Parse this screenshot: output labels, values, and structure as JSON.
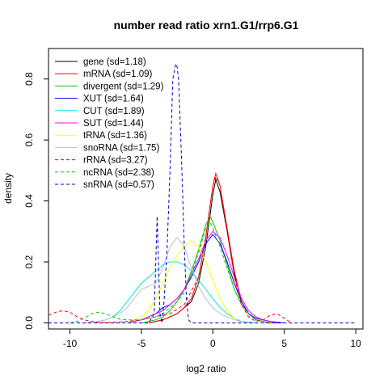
{
  "chart_data": {
    "type": "line",
    "title": "number read ratio xrn1.G1/rrp6.G1",
    "xlabel": "log2 ratio",
    "ylabel": "density",
    "xlim": [
      -11.5,
      10.5
    ],
    "ylim": [
      -0.02,
      0.9
    ],
    "xticks": [
      -10,
      -5,
      0,
      5,
      10
    ],
    "yticks": [
      0.0,
      0.2,
      0.4,
      0.6,
      0.8
    ],
    "xtick_labels": [
      "-10",
      "-5",
      "0",
      "5",
      "10"
    ],
    "ytick_labels": [
      "0.0",
      "0.2",
      "0.4",
      "0.6",
      "0.8"
    ],
    "grid": false,
    "legend_position": "top-left",
    "series": [
      {
        "name": "gene (sd=1.18)",
        "color": "#000000",
        "dash": "solid",
        "x": [
          -4.5,
          -4,
          -3.5,
          -3,
          -2.5,
          -2,
          -1.5,
          -1,
          -0.5,
          0,
          0.2,
          0.5,
          1,
          1.5,
          2,
          2.5,
          3,
          3.5,
          4,
          4.5
        ],
        "y": [
          0,
          0.005,
          0.01,
          0.02,
          0.03,
          0.05,
          0.07,
          0.13,
          0.25,
          0.42,
          0.47,
          0.43,
          0.3,
          0.16,
          0.07,
          0.03,
          0.01,
          0.005,
          0,
          0
        ]
      },
      {
        "name": "mRNA (sd=1.09)",
        "color": "#ff0000",
        "dash": "solid",
        "x": [
          -4.5,
          -4,
          -3.5,
          -3,
          -2.5,
          -2,
          -1.5,
          -1,
          -0.5,
          0,
          0.2,
          0.5,
          1,
          1.5,
          2,
          2.5,
          3,
          3.5,
          4,
          4.5
        ],
        "y": [
          0,
          0.005,
          0.01,
          0.02,
          0.03,
          0.05,
          0.08,
          0.15,
          0.28,
          0.45,
          0.49,
          0.45,
          0.31,
          0.17,
          0.07,
          0.03,
          0.01,
          0.005,
          0,
          0
        ]
      },
      {
        "name": "divergent (sd=1.29)",
        "color": "#00cc00",
        "dash": "solid",
        "x": [
          -5,
          -4.5,
          -4,
          -3.5,
          -3,
          -2.5,
          -2,
          -1.5,
          -1,
          -0.5,
          -0.2,
          0,
          0.5,
          1,
          1.5,
          2,
          2.5,
          3,
          3.5,
          4
        ],
        "y": [
          0,
          0.005,
          0.01,
          0.02,
          0.04,
          0.07,
          0.11,
          0.17,
          0.24,
          0.32,
          0.35,
          0.33,
          0.27,
          0.19,
          0.11,
          0.06,
          0.03,
          0.01,
          0.005,
          0
        ]
      },
      {
        "name": "XUT (sd=1.64)",
        "color": "#0000ff",
        "dash": "solid",
        "x": [
          -6,
          -5.5,
          -5,
          -4.5,
          -4,
          -3.5,
          -3,
          -2.5,
          -2,
          -1.5,
          -1,
          -0.5,
          0,
          0.5,
          1,
          1.5,
          2,
          2.5,
          3,
          4,
          5
        ],
        "y": [
          0,
          0.005,
          0.01,
          0.02,
          0.03,
          0.05,
          0.06,
          0.08,
          0.11,
          0.15,
          0.2,
          0.26,
          0.29,
          0.26,
          0.2,
          0.13,
          0.07,
          0.03,
          0.015,
          0.005,
          0
        ]
      },
      {
        "name": "CUT (sd=1.89)",
        "color": "#00e5ee",
        "dash": "solid",
        "x": [
          -9,
          -8,
          -7.5,
          -7,
          -6.5,
          -6,
          -5.5,
          -5,
          -4.5,
          -4,
          -3.5,
          -3,
          -2.5,
          -2,
          -1.5,
          -1,
          -0.5,
          0,
          0.5,
          1,
          1.5,
          2,
          3
        ],
        "y": [
          0,
          0.005,
          0.01,
          0.02,
          0.04,
          0.07,
          0.1,
          0.13,
          0.15,
          0.17,
          0.19,
          0.2,
          0.2,
          0.19,
          0.17,
          0.14,
          0.11,
          0.08,
          0.05,
          0.03,
          0.015,
          0.005,
          0
        ]
      },
      {
        "name": "SUT (sd=1.44)",
        "color": "#ff00ff",
        "dash": "solid",
        "x": [
          -6,
          -5.5,
          -5,
          -4.5,
          -4,
          -3.5,
          -3,
          -2.5,
          -2,
          -1.5,
          -1,
          -0.5,
          0,
          0.5,
          1,
          1.5,
          2,
          2.5,
          3,
          3.5,
          4.5
        ],
        "y": [
          0,
          0.005,
          0.01,
          0.02,
          0.03,
          0.04,
          0.06,
          0.08,
          0.11,
          0.16,
          0.21,
          0.27,
          0.3,
          0.28,
          0.22,
          0.15,
          0.08,
          0.04,
          0.02,
          0.01,
          0
        ]
      },
      {
        "name": "tRNA (sd=1.36)",
        "color": "#ffff00",
        "dash": "solid",
        "x": [
          -6,
          -5.5,
          -5,
          -4.5,
          -4,
          -3.5,
          -3,
          -2.5,
          -2,
          -1.5,
          -1,
          -0.5,
          0,
          0.5,
          1,
          1.5,
          2
        ],
        "y": [
          0,
          0.01,
          0.02,
          0.04,
          0.08,
          0.13,
          0.18,
          0.22,
          0.25,
          0.27,
          0.25,
          0.2,
          0.14,
          0.08,
          0.04,
          0.015,
          0
        ]
      },
      {
        "name": "snoRNA (sd=1.75)",
        "color": "#bebebe",
        "dash": "solid",
        "x": [
          -9,
          -8,
          -7.5,
          -7,
          -6.5,
          -6,
          -5.5,
          -5,
          -4.5,
          -4,
          -3.5,
          -3,
          -2.5,
          -2,
          -1.5,
          -1,
          -0.5,
          0,
          0.5,
          1,
          1.5,
          2,
          2.5
        ],
        "y": [
          0,
          0.005,
          0.01,
          0.02,
          0.03,
          0.05,
          0.08,
          0.11,
          0.12,
          0.13,
          0.18,
          0.25,
          0.28,
          0.25,
          0.18,
          0.12,
          0.08,
          0.05,
          0.03,
          0.02,
          0.01,
          0.005,
          0
        ]
      },
      {
        "name": "rRNA (sd=3.27)",
        "color": "#ff0000",
        "dash": "dashed",
        "x": [
          -11.5,
          -11,
          -10.5,
          -10,
          -9.5,
          -9,
          -8.5,
          -8,
          -7,
          -6,
          -5,
          -4,
          -3,
          -2,
          -1,
          -0.5,
          0,
          0.2,
          0.5,
          1,
          1.5,
          2,
          2.5,
          3,
          3.5,
          4,
          4.5,
          5,
          5.5
        ],
        "y": [
          0.025,
          0.035,
          0.04,
          0.035,
          0.02,
          0.01,
          0.005,
          0.002,
          0.002,
          0.005,
          0.01,
          0.02,
          0.03,
          0.06,
          0.15,
          0.28,
          0.45,
          0.48,
          0.45,
          0.3,
          0.15,
          0.06,
          0.02,
          0.005,
          0.01,
          0.025,
          0.03,
          0.015,
          0
        ]
      },
      {
        "name": "ncRNA (sd=2.38)",
        "color": "#00cc00",
        "dash": "dashed",
        "x": [
          -10,
          -9.5,
          -9,
          -8.5,
          -8,
          -7.5,
          -7,
          -6.5,
          -6,
          -5.5,
          -5,
          -4.5,
          -4,
          -3.5,
          -3,
          -2.5,
          -2,
          -1.5,
          -1,
          -0.5,
          -0.2,
          0,
          0.5,
          1,
          1.5,
          2,
          2.5,
          3,
          3.5,
          4
        ],
        "y": [
          0,
          0.005,
          0.015,
          0.03,
          0.035,
          0.03,
          0.02,
          0.012,
          0.01,
          0.01,
          0.01,
          0.015,
          0.02,
          0.03,
          0.05,
          0.07,
          0.1,
          0.16,
          0.23,
          0.31,
          0.33,
          0.31,
          0.25,
          0.18,
          0.11,
          0.06,
          0.03,
          0.01,
          0.005,
          0
        ]
      },
      {
        "name": "snRNA (sd=0.57)",
        "color": "#0000cc",
        "dash": "dashed",
        "x": [
          -11.5,
          -5,
          -4.5,
          -4.1,
          -3.9,
          -3.7,
          -3.55,
          -3.4,
          -3.2,
          -3,
          -2.8,
          -2.6,
          -2.5,
          -2.4,
          -2.2,
          -2,
          -1.85,
          -1.7,
          -1.5,
          -1,
          0,
          10
        ],
        "y": [
          0,
          0,
          0,
          0.03,
          0.35,
          0.03,
          0.0,
          0.08,
          0.25,
          0.5,
          0.8,
          0.85,
          0.84,
          0.8,
          0.55,
          0.25,
          0.08,
          0.01,
          0,
          0,
          0,
          0
        ]
      }
    ]
  }
}
